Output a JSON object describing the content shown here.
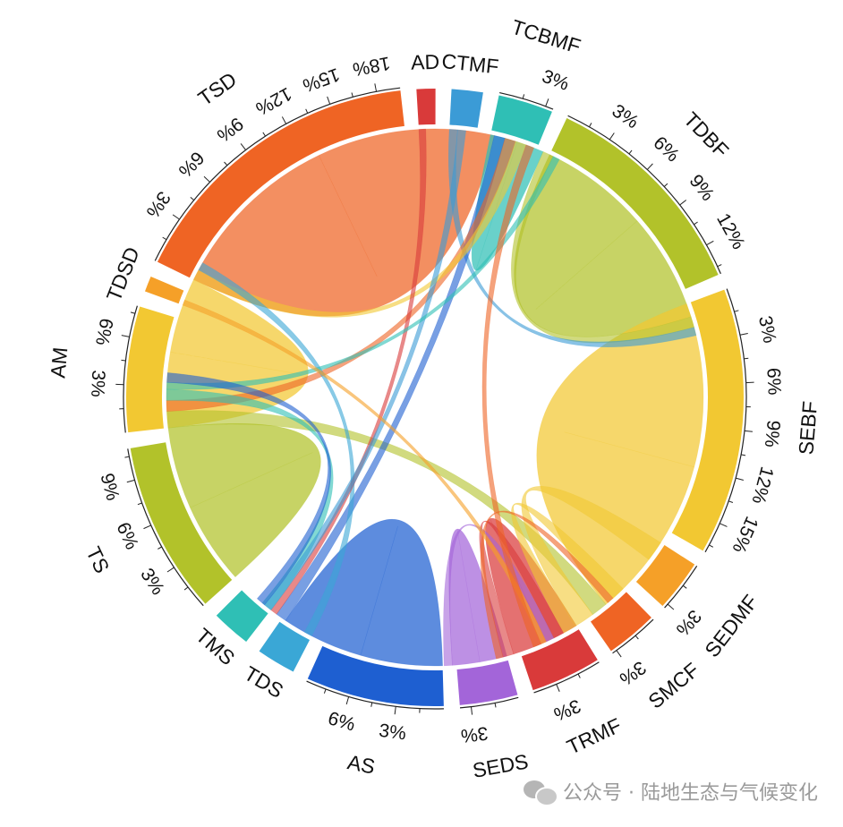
{
  "chart_data": {
    "type": "chord",
    "sectors": [
      {
        "name": "AD",
        "size": 1.2,
        "color": "#d93a3a",
        "ticks": []
      },
      {
        "name": "CTMF",
        "size": 2.0,
        "color": "#3b9bd6",
        "ticks": []
      },
      {
        "name": "TCBMF",
        "size": 3.5,
        "color": "#2fbfb5",
        "ticks": [
          "3%"
        ]
      },
      {
        "name": "TDBF",
        "size": 14.0,
        "color": "#b2c22a",
        "ticks": [
          "3%",
          "6%",
          "9%",
          "12%"
        ]
      },
      {
        "name": "SEBF",
        "size": 17.0,
        "color": "#f2c832",
        "ticks": [
          "3%",
          "6%",
          "9%",
          "12%",
          "15%"
        ]
      },
      {
        "name": "SEDMF",
        "size": 3.3,
        "color": "#f5a028",
        "ticks": [
          "3%"
        ]
      },
      {
        "name": "SMCF",
        "size": 3.3,
        "color": "#ef6424",
        "ticks": [
          "3%"
        ]
      },
      {
        "name": "TRMF",
        "size": 4.5,
        "color": "#d93a3a",
        "ticks": [
          "3%"
        ]
      },
      {
        "name": "SEDS",
        "size": 3.7,
        "color": "#a365d9",
        "ticks": [
          "3%"
        ]
      },
      {
        "name": "AS",
        "size": 8.8,
        "color": "#1e5fd1",
        "ticks": [
          "3%",
          "6%"
        ]
      },
      {
        "name": "TDS",
        "size": 2.5,
        "color": "#3aa7d6",
        "ticks": []
      },
      {
        "name": "TMS",
        "size": 2.5,
        "color": "#2fbfb5",
        "ticks": []
      },
      {
        "name": "TS",
        "size": 11.0,
        "color": "#b2c22a",
        "ticks": [
          "3%",
          "6%",
          "9%"
        ]
      },
      {
        "name": "AM",
        "size": 8.0,
        "color": "#f2c832",
        "ticks": [
          "3%",
          "6%"
        ]
      },
      {
        "name": "TDSD",
        "size": 1.0,
        "color": "#f5a028",
        "ticks": []
      },
      {
        "name": "TSD",
        "size": 19.5,
        "color": "#ef6424",
        "ticks": [
          "3%",
          "6%",
          "9%",
          "12%",
          "15%",
          "18%"
        ]
      }
    ],
    "links": [
      {
        "from": "TSD",
        "to": "TSD",
        "value": 13.0
      },
      {
        "from": "TDBF",
        "to": "TDBF",
        "value": 8.0
      },
      {
        "from": "SEBF",
        "to": "SEBF",
        "value": 12.0
      },
      {
        "from": "AM",
        "to": "AM",
        "value": 5.5
      },
      {
        "from": "TS",
        "to": "TS",
        "value": 6.0
      },
      {
        "from": "AS",
        "to": "AS",
        "value": 6.0
      },
      {
        "from": "TCBMF",
        "to": "TCBMF",
        "value": 2.0
      },
      {
        "from": "TRMF",
        "to": "TRMF",
        "value": 2.5
      },
      {
        "from": "SEDS",
        "to": "SEDS",
        "value": 2.0
      },
      {
        "from": "TS",
        "to": "SEBF",
        "value": 1.2
      },
      {
        "from": "SEBF",
        "to": "SEDMF",
        "value": 1.5
      },
      {
        "from": "SEBF",
        "to": "SMCF",
        "value": 1.0
      },
      {
        "from": "TDBF",
        "to": "TCBMF",
        "value": 0.8
      },
      {
        "from": "CTMF",
        "to": "TDBF",
        "value": 0.6
      },
      {
        "from": "AS",
        "to": "TSD",
        "value": 0.8
      },
      {
        "from": "TSD",
        "to": "TS",
        "value": 0.8
      },
      {
        "from": "AM",
        "to": "TSD",
        "value": 0.8
      },
      {
        "from": "TMS",
        "to": "TS",
        "value": 0.8
      },
      {
        "from": "TDS",
        "to": "AM",
        "value": 0.6
      },
      {
        "from": "TRMF",
        "to": "SEBF",
        "value": 0.8
      },
      {
        "from": "SEDS",
        "to": "SEBF",
        "value": 0.6
      },
      {
        "from": "SMCF",
        "to": "TRMF",
        "value": 0.5
      },
      {
        "from": "AD",
        "to": "AS",
        "value": 0.5
      },
      {
        "from": "CTMF",
        "to": "AS",
        "value": 0.6
      },
      {
        "from": "TCBMF",
        "to": "TS",
        "value": 0.5
      },
      {
        "from": "AS",
        "to": "TS",
        "value": 0.7
      },
      {
        "from": "TDSD",
        "to": "SEBF",
        "value": 0.4
      },
      {
        "from": "TSD",
        "to": "SEBF",
        "value": 0.6
      }
    ]
  },
  "watermark": {
    "text": "公众号 · 陆地生态与气候变化"
  }
}
